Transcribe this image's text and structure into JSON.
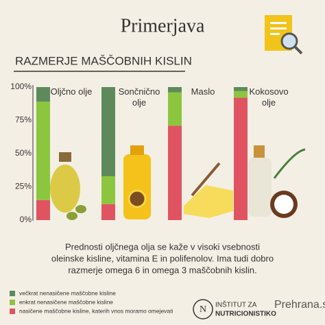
{
  "header": {
    "title": "Primerjava"
  },
  "chart_data": {
    "type": "stacked-bar",
    "title": "RAZMERJE MAŠČOBNIH KISLIN",
    "categories": [
      "Oljčno olje",
      "Sončnično olje",
      "Maslo",
      "Kokosovo olje"
    ],
    "series": [
      {
        "name": "večkrat nenasičene maščobne kisline",
        "color": "#5e8a5b",
        "values": [
          11,
          67,
          4,
          3
        ]
      },
      {
        "name": "enkrat nenasičene maščobne kisline",
        "color": "#8cc63f",
        "values": [
          74,
          21,
          25,
          5
        ]
      },
      {
        "name": "nasičene maščobne kisline, katerih vnos moramo omejevati",
        "color": "#e05462",
        "values": [
          15,
          12,
          71,
          92
        ]
      }
    ],
    "ylim": [
      0,
      100
    ],
    "yticks": [
      {
        "value": 0,
        "label": "0%"
      },
      {
        "value": 25,
        "label": "25%"
      },
      {
        "value": 50,
        "label": "50%"
      },
      {
        "value": 75,
        "label": "75%"
      },
      {
        "value": 100,
        "label": "100%"
      }
    ],
    "legend": "bottom-left"
  },
  "note": [
    "Prednosti oljčnega olja se kaže v visoki vsebnosti",
    "oleinske kisline, vitamina E in polifenolov. Ima tudi dobro",
    "razmerje omega 6 in omega 3 maščobnih kislin."
  ],
  "footer": {
    "institute": [
      "INŠTITUT ZA",
      "NUTRICIONISTIKO"
    ],
    "site": "Prehrana.si"
  }
}
